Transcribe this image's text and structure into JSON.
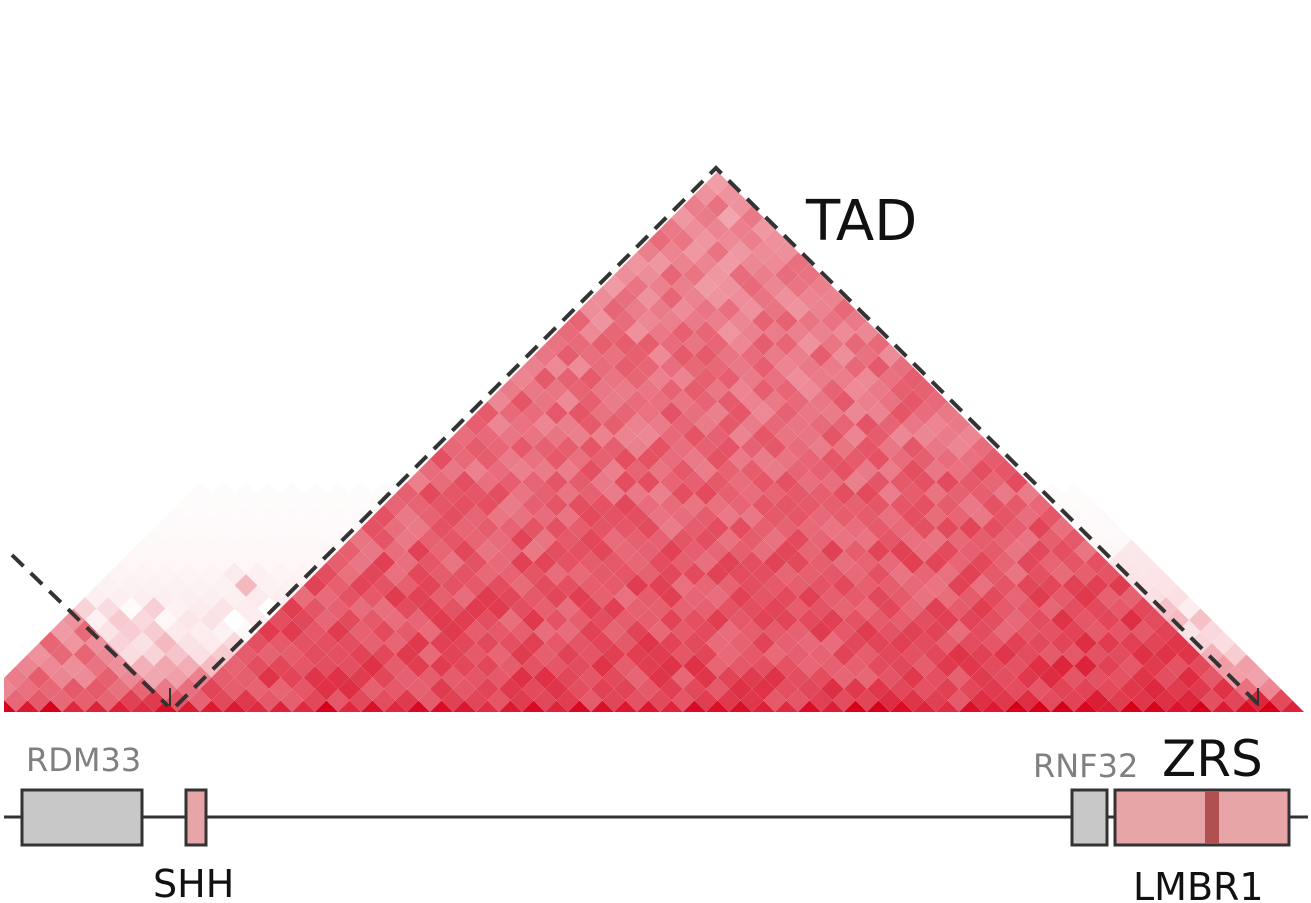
{
  "labels": {
    "tad": "TAD",
    "zrs": "ZRS"
  },
  "genes": [
    {
      "name": "RDM33",
      "label_color": "gray"
    },
    {
      "name": "SHH",
      "label_color": "black"
    },
    {
      "name": "RNF32",
      "label_color": "gray"
    },
    {
      "name": "LMBR1",
      "label_color": "black"
    }
  ],
  "colors": {
    "heatmap_high": "#d7001a",
    "heatmap_low": "#ffffff",
    "tad_outline": "#333333",
    "gene_neutral": "#c8c8c8",
    "gene_highlight": "#e8a5a8",
    "zrs_marker": "#b05050",
    "gene_border": "#333333",
    "backbone": "#333333"
  }
}
